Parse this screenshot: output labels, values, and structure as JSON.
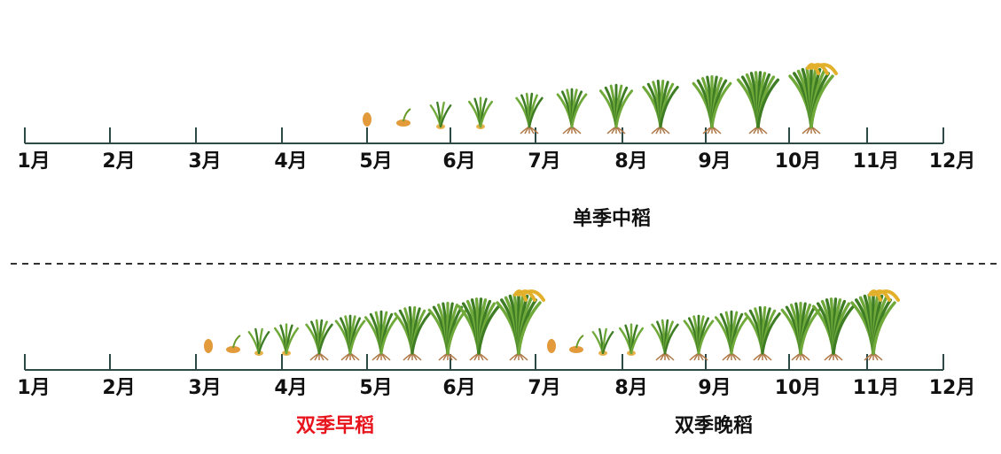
{
  "timelines": [
    {
      "months": [
        "1月",
        "2月",
        "3月",
        "4月",
        "5月",
        "6月",
        "7月",
        "8月",
        "9月",
        "10月",
        "11月",
        "12月"
      ],
      "crops": [
        "单季中稻"
      ]
    },
    {
      "months": [
        "1月",
        "2月",
        "3月",
        "4月",
        "5月",
        "6月",
        "7月",
        "8月",
        "9月",
        "10月",
        "11月",
        "12月"
      ],
      "crops": [
        "双季早稻",
        "双季晚稻"
      ]
    }
  ]
}
